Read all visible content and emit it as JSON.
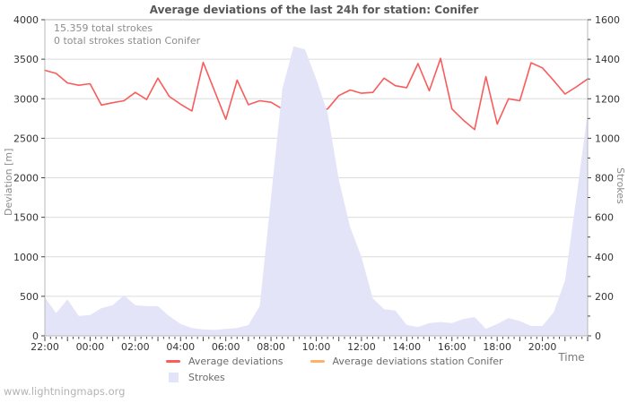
{
  "title": "Average deviations of the last 24h for station: Conifer",
  "annotations": {
    "total_strokes": "15.359 total strokes",
    "station_strokes": "0 total strokes station Conifer"
  },
  "axes": {
    "left_label": "Deviation [m]",
    "right_label": "Strokes",
    "x_label": "Time"
  },
  "legend": {
    "items": [
      {
        "label": "Average deviations",
        "color": "#f85c5c",
        "swatch": "line"
      },
      {
        "label": "Average deviations station Conifer",
        "color": "#fdb267",
        "swatch": "line"
      },
      {
        "label": "Strokes",
        "color": "#e4e4f8",
        "swatch": "area"
      }
    ]
  },
  "watermark": "www.lightningmaps.org",
  "colors": {
    "deviation_line": "#f85c5c",
    "station_line": "#fdb267",
    "strokes_area": "#e4e4f8",
    "gridline": "#dcdcdc",
    "plot_border": "#b8b8b8"
  },
  "chart_data": {
    "type": "line+area",
    "title": "Average deviations of the last 24h for station: Conifer",
    "x": [
      "22:00",
      "22:30",
      "23:00",
      "23:30",
      "00:00",
      "00:30",
      "01:00",
      "01:30",
      "02:00",
      "02:30",
      "03:00",
      "03:30",
      "04:00",
      "04:30",
      "05:00",
      "05:30",
      "06:00",
      "06:30",
      "07:00",
      "07:30",
      "08:00",
      "08:30",
      "09:00",
      "09:30",
      "10:00",
      "10:30",
      "11:00",
      "11:30",
      "12:00",
      "12:30",
      "13:00",
      "13:30",
      "14:00",
      "14:30",
      "15:00",
      "15:30",
      "16:00",
      "16:30",
      "17:00",
      "17:30",
      "18:00",
      "18:30",
      "19:00",
      "19:30",
      "20:00",
      "20:30",
      "21:00",
      "21:30",
      "22:00"
    ],
    "x_tick_labels": [
      "22:00",
      "00:00",
      "02:00",
      "04:00",
      "06:00",
      "08:00",
      "10:00",
      "12:00",
      "14:00",
      "16:00",
      "18:00",
      "20:00"
    ],
    "series": [
      {
        "name": "Average deviations",
        "type": "line",
        "axis": "left",
        "color": "#f85c5c",
        "values": [
          3360,
          3320,
          3200,
          3170,
          3190,
          2920,
          2950,
          2975,
          3080,
          2990,
          3260,
          3030,
          2930,
          2845,
          3460,
          3100,
          2740,
          3235,
          2925,
          2975,
          2955,
          2870,
          2800,
          2875,
          2855,
          2870,
          3040,
          3110,
          3070,
          3080,
          3260,
          3165,
          3140,
          3445,
          3100,
          3510,
          2870,
          2730,
          2610,
          3280,
          2680,
          3000,
          2975,
          3455,
          3390,
          3230,
          3060,
          3150,
          3250
        ]
      },
      {
        "name": "Average deviations station Conifer",
        "type": "line",
        "axis": "left",
        "color": "#fdb267",
        "values": []
      },
      {
        "name": "Strokes",
        "type": "area",
        "axis": "right",
        "color": "#e4e4f8",
        "values": [
          195,
          115,
          185,
          100,
          105,
          140,
          155,
          205,
          155,
          150,
          150,
          100,
          60,
          40,
          32,
          30,
          35,
          40,
          55,
          150,
          700,
          1250,
          1465,
          1450,
          1300,
          1130,
          790,
          550,
          400,
          190,
          135,
          128,
          55,
          45,
          65,
          70,
          65,
          85,
          95,
          35,
          60,
          90,
          75,
          50,
          50,
          120,
          280,
          700,
          1130
        ]
      }
    ],
    "left_axis": {
      "label": "Deviation [m]",
      "range": [
        0,
        4000
      ],
      "ticks": [
        0,
        500,
        1000,
        1500,
        2000,
        2500,
        3000,
        3500,
        4000
      ]
    },
    "right_axis": {
      "label": "Strokes",
      "range": [
        0,
        1600
      ],
      "ticks": [
        0,
        200,
        400,
        600,
        800,
        1000,
        1200,
        1400,
        1600
      ],
      "minor_step": 100,
      "label_step": 200
    },
    "x_axis": {
      "label": "Time",
      "hours_span": 24,
      "tick_every_minutes": 15,
      "label_every_hours": 2
    },
    "grid": "horizontal",
    "legend_position": "bottom-center"
  }
}
